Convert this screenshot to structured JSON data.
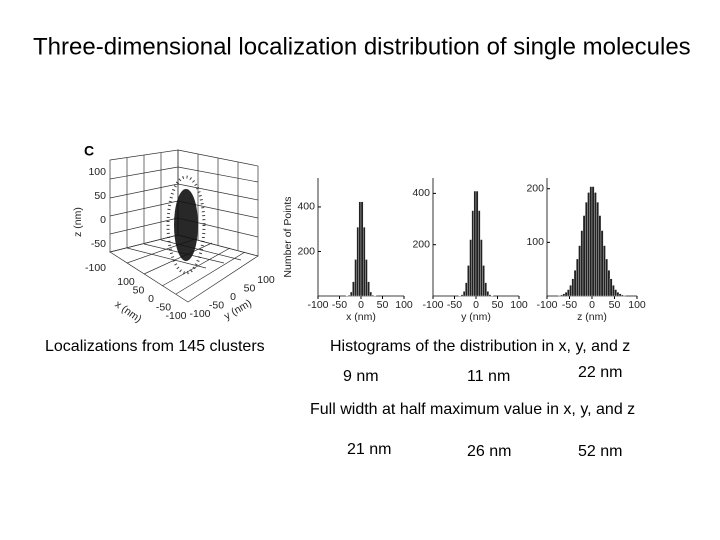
{
  "title": "Three-dimensional localization distribution of single molecules",
  "scatter3d": {
    "panel_label": "C",
    "zlabel": "z (nm)",
    "xlabel": "x (nm)",
    "ylabel": "y (nm)",
    "zticks": [
      100,
      50,
      0,
      -50,
      -100
    ],
    "xticks": [
      100,
      50,
      0,
      -50,
      -100
    ],
    "yticks": [
      100,
      50,
      0,
      -50,
      -100
    ]
  },
  "chart_data": [
    {
      "type": "histogram",
      "ylabel": "Number of Points",
      "xlabel": "x (nm)",
      "color": "#222222",
      "bins": [
        -50,
        -45,
        -40,
        -35,
        -30,
        -25,
        -20,
        -15,
        -10,
        -5,
        0,
        5,
        10,
        15,
        20,
        25,
        30,
        35,
        40,
        45,
        50
      ],
      "counts": [
        0,
        0,
        0,
        1,
        4,
        18,
        64,
        164,
        309,
        423,
        423,
        309,
        164,
        64,
        18,
        4,
        1,
        0,
        0,
        0
      ],
      "xlim": [
        -100,
        100
      ],
      "xticks": [
        -100,
        -50,
        0,
        50,
        100
      ],
      "ylim": [
        0,
        530
      ],
      "yticks": [
        200,
        400
      ]
    },
    {
      "type": "histogram",
      "xlabel": "y (nm)",
      "color": "#222222",
      "bins": [
        -50,
        -45,
        -40,
        -35,
        -30,
        -25,
        -20,
        -15,
        -10,
        -5,
        0,
        5,
        10,
        15,
        20,
        25,
        30,
        35,
        40,
        45,
        50
      ],
      "counts": [
        0,
        0,
        1,
        5,
        18,
        52,
        119,
        220,
        333,
        409,
        409,
        333,
        220,
        119,
        52,
        18,
        5,
        1,
        0,
        0
      ],
      "xlim": [
        -100,
        100
      ],
      "xticks": [
        -100,
        -50,
        0,
        50,
        100
      ],
      "ylim": [
        0,
        460
      ],
      "yticks": [
        200,
        400
      ]
    },
    {
      "type": "histogram",
      "xlabel": "z (nm)",
      "color": "#222222",
      "bins": [
        -90,
        -85,
        -80,
        -75,
        -70,
        -65,
        -60,
        -55,
        -50,
        -45,
        -40,
        -35,
        -30,
        -25,
        -20,
        -15,
        -10,
        -5,
        0,
        5,
        10,
        15,
        20,
        25,
        30,
        35,
        40,
        45,
        50,
        55,
        60,
        65,
        70,
        75,
        80,
        85,
        90
      ],
      "counts": [
        0,
        0,
        0,
        1,
        2,
        4,
        7,
        12,
        20,
        32,
        48,
        69,
        94,
        122,
        150,
        175,
        193,
        204,
        204,
        193,
        175,
        150,
        122,
        94,
        69,
        48,
        32,
        20,
        12,
        7,
        4,
        2,
        1,
        0,
        0,
        0
      ],
      "xlim": [
        -100,
        100
      ],
      "xticks": [
        -100,
        -50,
        0,
        50,
        100
      ],
      "ylim": [
        0,
        220
      ],
      "yticks": [
        100,
        200
      ]
    }
  ],
  "captions": {
    "left": "Localizations from 145 clusters",
    "histograms": "Histograms of the  distribution in x, y, and z",
    "precision": [
      "9 nm",
      "11 nm",
      "22 nm"
    ],
    "fwhm_title": "Full  width at half maximum value in x, y, and z",
    "fwhm": [
      "21 nm",
      "26 nm",
      "52 nm"
    ]
  }
}
